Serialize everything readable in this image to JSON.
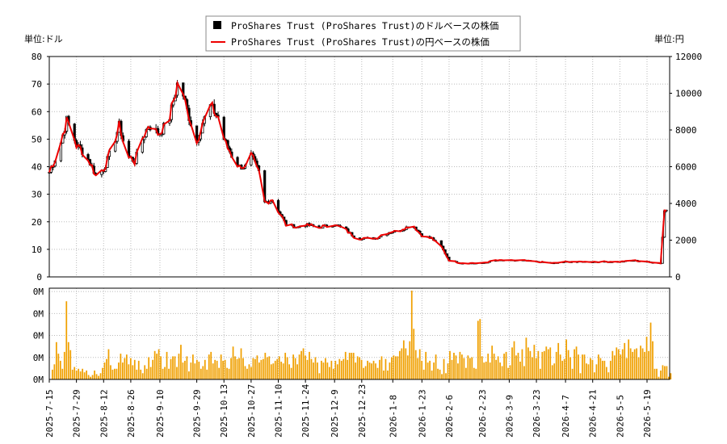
{
  "chart_data": {
    "type": "line",
    "legend": {
      "placement": "top-center",
      "entries": [
        {
          "label": "ProShares Trust (ProShares Trust)のドルベースの株価",
          "marker": "black-square",
          "color": "#000000"
        },
        {
          "label": "ProShares Trust (ProShares Trust)の円ベースの株価",
          "marker": "red-line",
          "color": "#ee0000"
        }
      ]
    },
    "left_unit_label": "単位:ドル",
    "right_unit_label": "単位:円",
    "price_axis_left": {
      "ticks": [
        "0",
        "10",
        "20",
        "30",
        "40",
        "50",
        "60",
        "70",
        "80"
      ],
      "range": [
        0,
        80
      ]
    },
    "price_axis_right": {
      "ticks": [
        "0",
        "2000",
        "4000",
        "6000",
        "8000",
        "10000",
        "12000"
      ],
      "range": [
        0,
        12000
      ]
    },
    "volume_axis": {
      "ticks": [
        "0M",
        "0M",
        "0M",
        "0M",
        "0M"
      ]
    },
    "x_tick_labels": [
      "2025-7-15",
      "2025-7-29",
      "2025-8-12",
      "2025-8-26",
      "2025-9-10",
      "2025-9-29",
      "2025-10-13",
      "2025-10-27",
      "2025-11-10",
      "2025-11-24",
      "2025-12-9",
      "2025-12-23",
      "2026-1-8",
      "2026-1-23",
      "2026-2-6",
      "2026-2-23",
      "2026-3-9",
      "2026-3-23",
      "2026-4-7",
      "2026-4-21",
      "2026-5-5",
      "2026-5-19"
    ],
    "grid": true,
    "colors": {
      "candle": "#000000",
      "yen_line": "#ee0000",
      "volume_bar": "#f0a000",
      "grid": "#bbbbbb"
    },
    "usd_close_keypoints": [
      [
        "2025-7-15",
        38
      ],
      [
        "2025-7-20",
        46
      ],
      [
        "2025-7-24",
        57
      ],
      [
        "2025-7-29",
        48
      ],
      [
        "2025-8-3",
        44
      ],
      [
        "2025-8-8",
        37
      ],
      [
        "2025-8-12",
        39
      ],
      [
        "2025-8-17",
        48
      ],
      [
        "2025-8-20",
        55
      ],
      [
        "2025-8-24",
        44
      ],
      [
        "2025-8-28",
        42
      ],
      [
        "2025-9-1",
        50
      ],
      [
        "2025-9-4",
        55
      ],
      [
        "2025-9-10",
        52
      ],
      [
        "2025-9-15",
        58
      ],
      [
        "2025-9-19",
        70
      ],
      [
        "2025-9-22",
        66
      ],
      [
        "2025-9-25",
        58
      ],
      [
        "2025-9-29",
        49
      ],
      [
        "2025-10-2",
        56
      ],
      [
        "2025-10-6",
        62
      ],
      [
        "2025-10-10",
        58
      ],
      [
        "2025-10-13",
        50
      ],
      [
        "2025-10-17",
        44
      ],
      [
        "2025-10-21",
        40
      ],
      [
        "2025-10-24",
        40
      ],
      [
        "2025-10-27",
        44
      ],
      [
        "2025-10-31",
        38
      ],
      [
        "2025-11-3",
        27
      ],
      [
        "2025-11-7",
        28
      ],
      [
        "2025-11-10",
        24
      ],
      [
        "2025-11-14",
        19
      ],
      [
        "2025-11-20",
        18
      ],
      [
        "2025-11-24",
        19
      ],
      [
        "2025-12-1",
        18
      ],
      [
        "2025-12-9",
        19
      ],
      [
        "2025-12-15",
        17
      ],
      [
        "2025-12-20",
        14
      ],
      [
        "2025-12-23",
        14
      ],
      [
        "2025-12-30",
        14
      ],
      [
        "2026-1-5",
        16
      ],
      [
        "2026-1-12",
        17
      ],
      [
        "2026-1-18",
        19
      ],
      [
        "2026-1-23",
        15
      ],
      [
        "2026-1-28",
        14
      ],
      [
        "2026-2-2",
        11
      ],
      [
        "2026-2-6",
        6
      ],
      [
        "2026-2-12",
        5
      ],
      [
        "2026-2-23",
        5
      ],
      [
        "2026-3-2",
        6
      ],
      [
        "2026-3-9",
        6
      ],
      [
        "2026-3-16",
        6
      ],
      [
        "2026-3-23",
        5.5
      ],
      [
        "2026-4-1",
        5
      ],
      [
        "2026-4-7",
        5.5
      ],
      [
        "2026-4-21",
        5.5
      ],
      [
        "2026-5-5",
        5.5
      ],
      [
        "2026-5-12",
        6
      ],
      [
        "2026-5-19",
        5.5
      ],
      [
        "2026-5-26",
        5
      ],
      [
        "2026-5-28",
        24
      ],
      [
        "2026-5-30",
        25
      ]
    ],
    "volume_values": [
      0.11,
      0.17,
      0.42,
      0.29,
      0.21,
      0.12,
      0.31,
      0.88,
      0.42,
      0.33,
      0.11,
      0.14,
      0.1,
      0.12,
      0.09,
      0.12,
      0.08,
      0.1,
      0.05,
      0.03,
      0.05,
      0.1,
      0.06,
      0.04,
      0.07,
      0.13,
      0.19,
      0.23,
      0.34,
      0.16,
      0.11,
      0.12,
      0.12,
      0.19,
      0.29,
      0.19,
      0.24,
      0.28,
      0.17,
      0.24,
      0.16,
      0.22,
      0.11,
      0.21,
      0.11,
      0.07,
      0.16,
      0.12,
      0.25,
      0.14,
      0.22,
      0.32,
      0.29,
      0.34,
      0.26,
      0.12,
      0.14,
      0.31,
      0.12,
      0.23,
      0.26,
      0.26,
      0.14,
      0.29,
      0.39,
      0.19,
      0.21,
      0.26,
      0.09,
      0.19,
      0.28,
      0.18,
      0.22,
      0.2,
      0.12,
      0.15,
      0.22,
      0.11,
      0.28,
      0.31,
      0.18,
      0.22,
      0.21,
      0.13,
      0.28,
      0.21,
      0.22,
      0.13,
      0.12,
      0.24,
      0.37,
      0.26,
      0.23,
      0.24,
      0.35,
      0.24,
      0.15,
      0.12,
      0.17,
      0.14,
      0.24,
      0.23,
      0.27,
      0.19,
      0.22,
      0.23,
      0.3,
      0.25,
      0.26,
      0.17,
      0.18,
      0.21,
      0.23,
      0.26,
      0.2,
      0.18,
      0.3,
      0.25,
      0.17,
      0.13,
      0.28,
      0.24,
      0.17,
      0.28,
      0.32,
      0.35,
      0.27,
      0.22,
      0.31,
      0.23,
      0.19,
      0.25,
      0.19,
      0.07,
      0.21,
      0.19,
      0.24,
      0.19,
      0.14,
      0.21,
      0.12,
      0.21,
      0.17,
      0.23,
      0.21,
      0.23,
      0.31,
      0.22,
      0.3,
      0.3,
      0.3,
      0.19,
      0.26,
      0.25,
      0.22,
      0.13,
      0.15,
      0.21,
      0.19,
      0.18,
      0.21,
      0.18,
      0.13,
      0.22,
      0.26,
      0.1,
      0.23,
      0.1,
      0.19,
      0.25,
      0.27,
      0.26,
      0.26,
      0.32,
      0.35,
      0.44,
      0.35,
      0.27,
      0.43,
      1.0,
      0.57,
      0.33,
      0.24,
      0.34,
      0.21,
      0.11,
      0.31,
      0.19,
      0.21,
      0.1,
      0.19,
      0.28,
      0.12,
      0.11,
      0.06,
      0.23,
      0.07,
      0.18,
      0.32,
      0.22,
      0.3,
      0.27,
      0.18,
      0.31,
      0.28,
      0.24,
      0.13,
      0.27,
      0.24,
      0.25,
      0.13,
      0.12,
      0.66,
      0.68,
      0.26,
      0.19,
      0.2,
      0.29,
      0.19,
      0.38,
      0.29,
      0.22,
      0.26,
      0.19,
      0.15,
      0.29,
      0.31,
      0.13,
      0.16,
      0.36,
      0.43,
      0.27,
      0.3,
      0.2,
      0.34,
      0.15,
      0.47,
      0.36,
      0.32,
      0.25,
      0.39,
      0.24,
      0.32,
      0.12,
      0.31,
      0.32,
      0.37,
      0.34,
      0.36,
      0.16,
      0.18,
      0.31,
      0.41,
      0.28,
      0.21,
      0.23,
      0.45,
      0.33,
      0.25,
      0.12,
      0.34,
      0.37,
      0.28,
      0.07,
      0.28,
      0.28,
      0.18,
      0.17,
      0.24,
      0.22,
      0.08,
      0.17,
      0.28,
      0.24,
      0.21,
      0.21,
      0.14,
      0.08,
      0.21,
      0.32,
      0.27,
      0.36,
      0.34,
      0.28,
      0.34,
      0.41,
      0.24,
      0.45,
      0.35,
      0.31,
      0.34,
      0.35,
      0.25,
      0.38,
      0.35,
      0.31,
      0.48,
      0.32,
      0.64,
      0.43,
      0.12,
      0.12,
      0.03,
      0.1,
      0.16,
      0.15,
      0.15,
      0.03,
      0.07
    ]
  }
}
